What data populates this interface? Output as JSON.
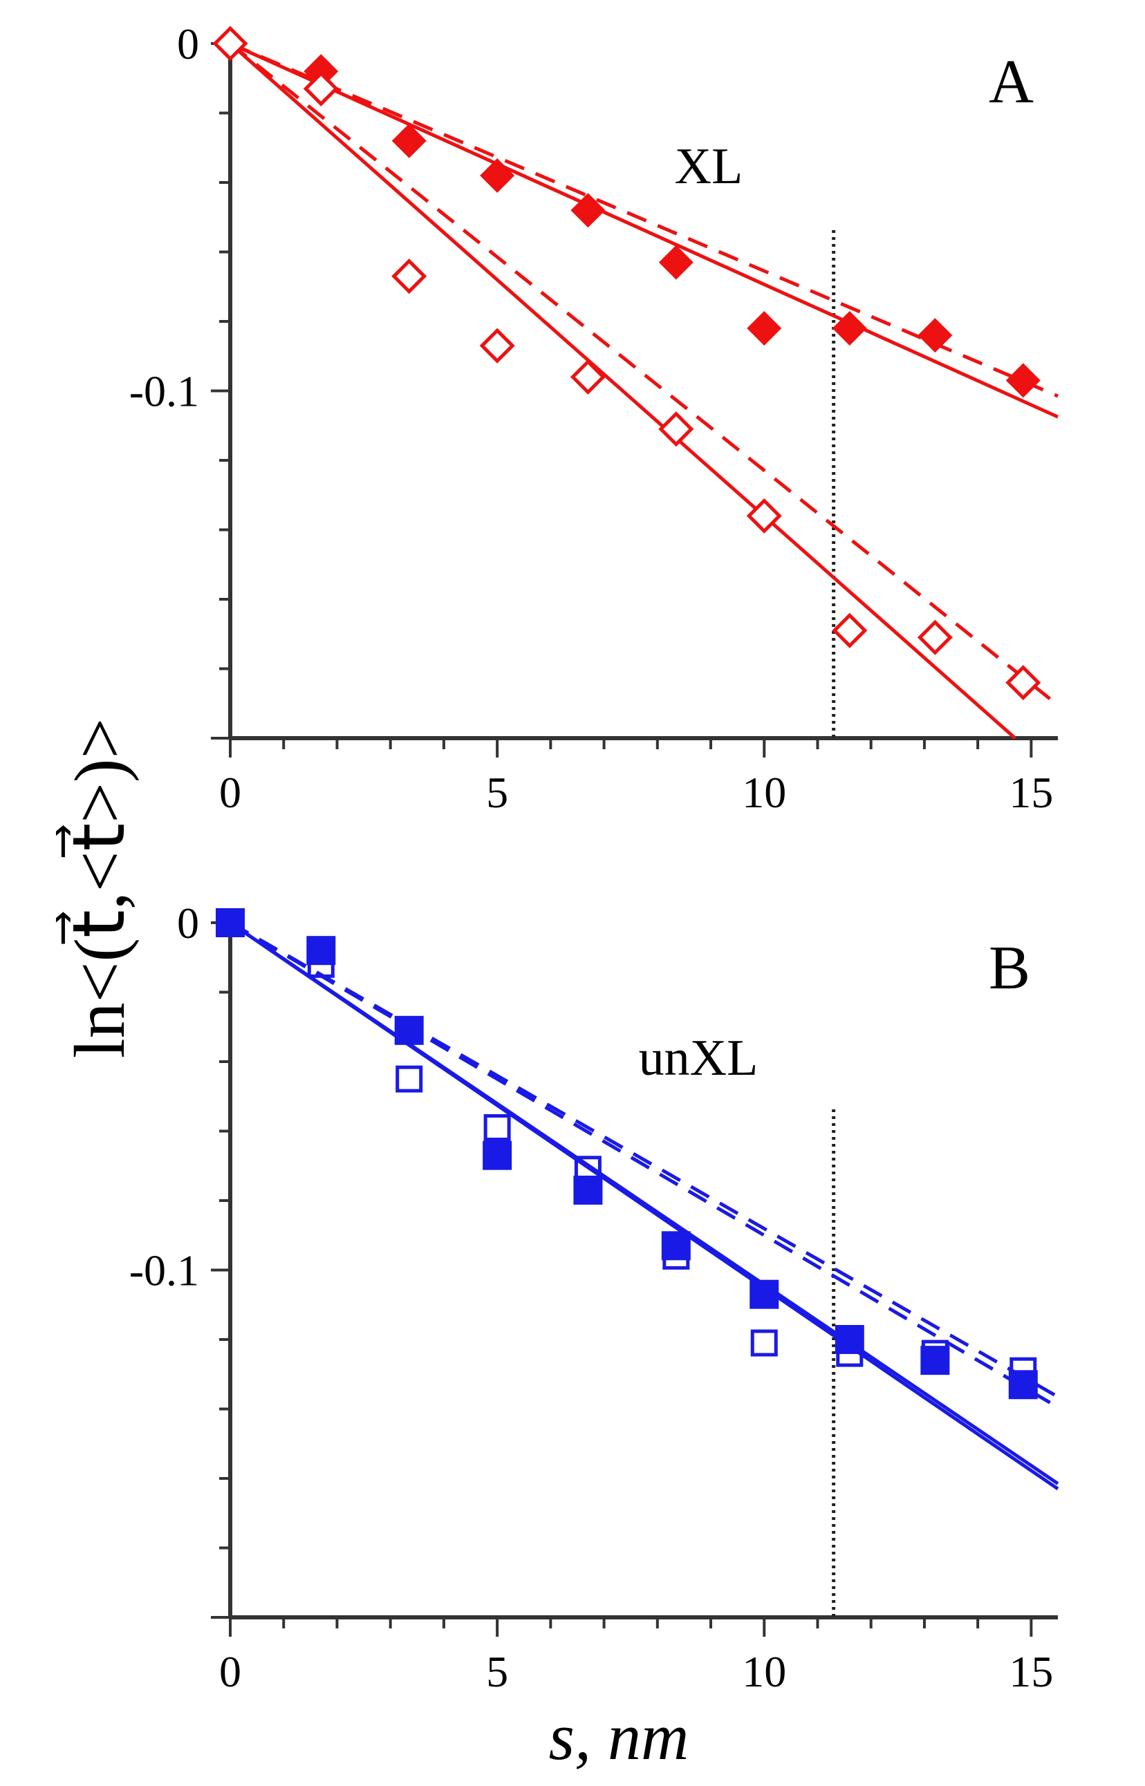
{
  "figure": {
    "y_axis_label": "ln<(t⃗,<t⃗>)>",
    "x_axis_label": "s, nm"
  },
  "chart_data": [
    {
      "panel": "A",
      "type": "scatter",
      "annotation": "XL",
      "xlim": [
        0,
        15.5
      ],
      "ylim": [
        -0.2,
        0
      ],
      "x_ticks": [
        0,
        5,
        10,
        15
      ],
      "x_tick_labels": [
        "0",
        "5",
        "10",
        "15"
      ],
      "y_ticks": [
        0,
        -0.1
      ],
      "y_tick_labels": [
        "0",
        "-0.1"
      ],
      "grid": false,
      "color": "#ee1111",
      "vertical_marker_x": 11.3,
      "series": [
        {
          "marker": "filled-diamond",
          "x": [
            0,
            1.7,
            3.35,
            5.0,
            6.7,
            8.35,
            10.0,
            11.6,
            13.2,
            14.85
          ],
          "y": [
            0,
            -0.008,
            -0.028,
            -0.038,
            -0.048,
            -0.063,
            -0.082,
            -0.082,
            -0.084,
            -0.097
          ]
        },
        {
          "marker": "open-diamond",
          "x": [
            0,
            1.7,
            3.35,
            5.0,
            6.7,
            8.35,
            10.0,
            11.6,
            13.2,
            14.85
          ],
          "y": [
            0,
            -0.013,
            -0.067,
            -0.087,
            -0.096,
            -0.111,
            -0.136,
            -0.169,
            -0.171,
            -0.184
          ]
        }
      ],
      "lines": [
        {
          "style": "solid",
          "x": [
            0,
            15.5
          ],
          "y": [
            0,
            -0.1075
          ]
        },
        {
          "style": "dashed",
          "x": [
            0,
            15.5
          ],
          "y": [
            0,
            -0.1015
          ]
        },
        {
          "style": "solid",
          "x": [
            0,
            14.7
          ],
          "y": [
            0,
            -0.2
          ]
        },
        {
          "style": "dashed",
          "x": [
            0,
            15.5
          ],
          "y": [
            0,
            -0.1905
          ]
        }
      ]
    },
    {
      "panel": "B",
      "type": "scatter",
      "annotation": "unXL",
      "xlim": [
        0,
        15.5
      ],
      "ylim": [
        -0.2,
        0
      ],
      "x_ticks": [
        0,
        5,
        10,
        15
      ],
      "x_tick_labels": [
        "0",
        "5",
        "10",
        "15"
      ],
      "y_ticks": [
        0,
        -0.1
      ],
      "y_tick_labels": [
        "0",
        "-0.1"
      ],
      "grid": false,
      "color": "#1a1ae6",
      "vertical_marker_x": 11.3,
      "series": [
        {
          "marker": "filled-square",
          "x": [
            0,
            1.7,
            3.35,
            5.0,
            6.7,
            8.35,
            10.0,
            11.6,
            13.2,
            14.85
          ],
          "y": [
            0,
            -0.008,
            -0.031,
            -0.067,
            -0.077,
            -0.093,
            -0.107,
            -0.12,
            -0.126,
            -0.133
          ]
        },
        {
          "marker": "open-square",
          "x": [
            0,
            1.7,
            3.35,
            5.0,
            6.7,
            8.35,
            10.0,
            11.6,
            13.2,
            14.85
          ],
          "y": [
            0,
            -0.012,
            -0.045,
            -0.059,
            -0.071,
            -0.096,
            -0.121,
            -0.124,
            -0.124,
            -0.129
          ]
        }
      ],
      "lines": [
        {
          "style": "solid",
          "x": [
            0,
            15.5
          ],
          "y": [
            0,
            -0.1615
          ]
        },
        {
          "style": "solid",
          "x": [
            0,
            15.5
          ],
          "y": [
            0,
            -0.163
          ]
        },
        {
          "style": "dashed",
          "x": [
            0,
            15.5
          ],
          "y": [
            0,
            -0.1365
          ]
        },
        {
          "style": "dashed",
          "x": [
            0,
            15.5
          ],
          "y": [
            0,
            -0.1395
          ]
        }
      ]
    }
  ]
}
